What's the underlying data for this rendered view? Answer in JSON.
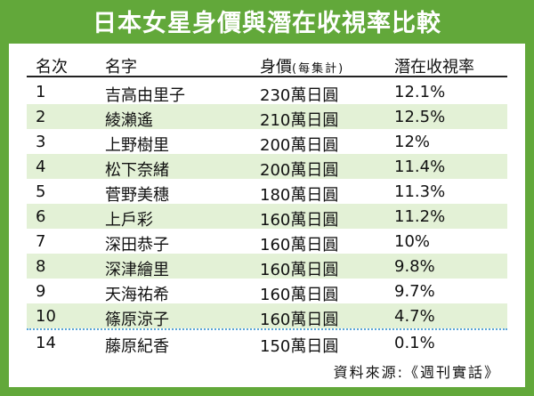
{
  "title": "日本女星身價與潛在收視率比較",
  "headers": {
    "rank": "名次",
    "name": "名字",
    "price": "身價",
    "price_unit": "(每集計)",
    "rating": "潛在收視率"
  },
  "rows": [
    {
      "rank": "1",
      "name": "吉高由里子",
      "price": "230萬日圓",
      "rating": "12.1%"
    },
    {
      "rank": "2",
      "name": "綾瀨遙",
      "price": "210萬日圓",
      "rating": "12.5%"
    },
    {
      "rank": "3",
      "name": "上野樹里",
      "price": "200萬日圓",
      "rating": "12%"
    },
    {
      "rank": "4",
      "name": "松下奈緒",
      "price": "200萬日圓",
      "rating": "11.4%"
    },
    {
      "rank": "5",
      "name": "菅野美穗",
      "price": "180萬日圓",
      "rating": "11.3%"
    },
    {
      "rank": "6",
      "name": "上戶彩",
      "price": "160萬日圓",
      "rating": "11.2%"
    },
    {
      "rank": "7",
      "name": "深田恭子",
      "price": "160萬日圓",
      "rating": "10%"
    },
    {
      "rank": "8",
      "name": "深津繪里",
      "price": "160萬日圓",
      "rating": "9.8%"
    },
    {
      "rank": "9",
      "name": "天海祐希",
      "price": "160萬日圓",
      "rating": "9.7%"
    },
    {
      "rank": "10",
      "name": "篠原涼子",
      "price": "160萬日圓",
      "rating": "4.7%"
    },
    {
      "rank": "14",
      "name": "藤原紀香",
      "price": "150萬日圓",
      "rating": "0.1%"
    }
  ],
  "source": "資料來源:《週刊實話》"
}
